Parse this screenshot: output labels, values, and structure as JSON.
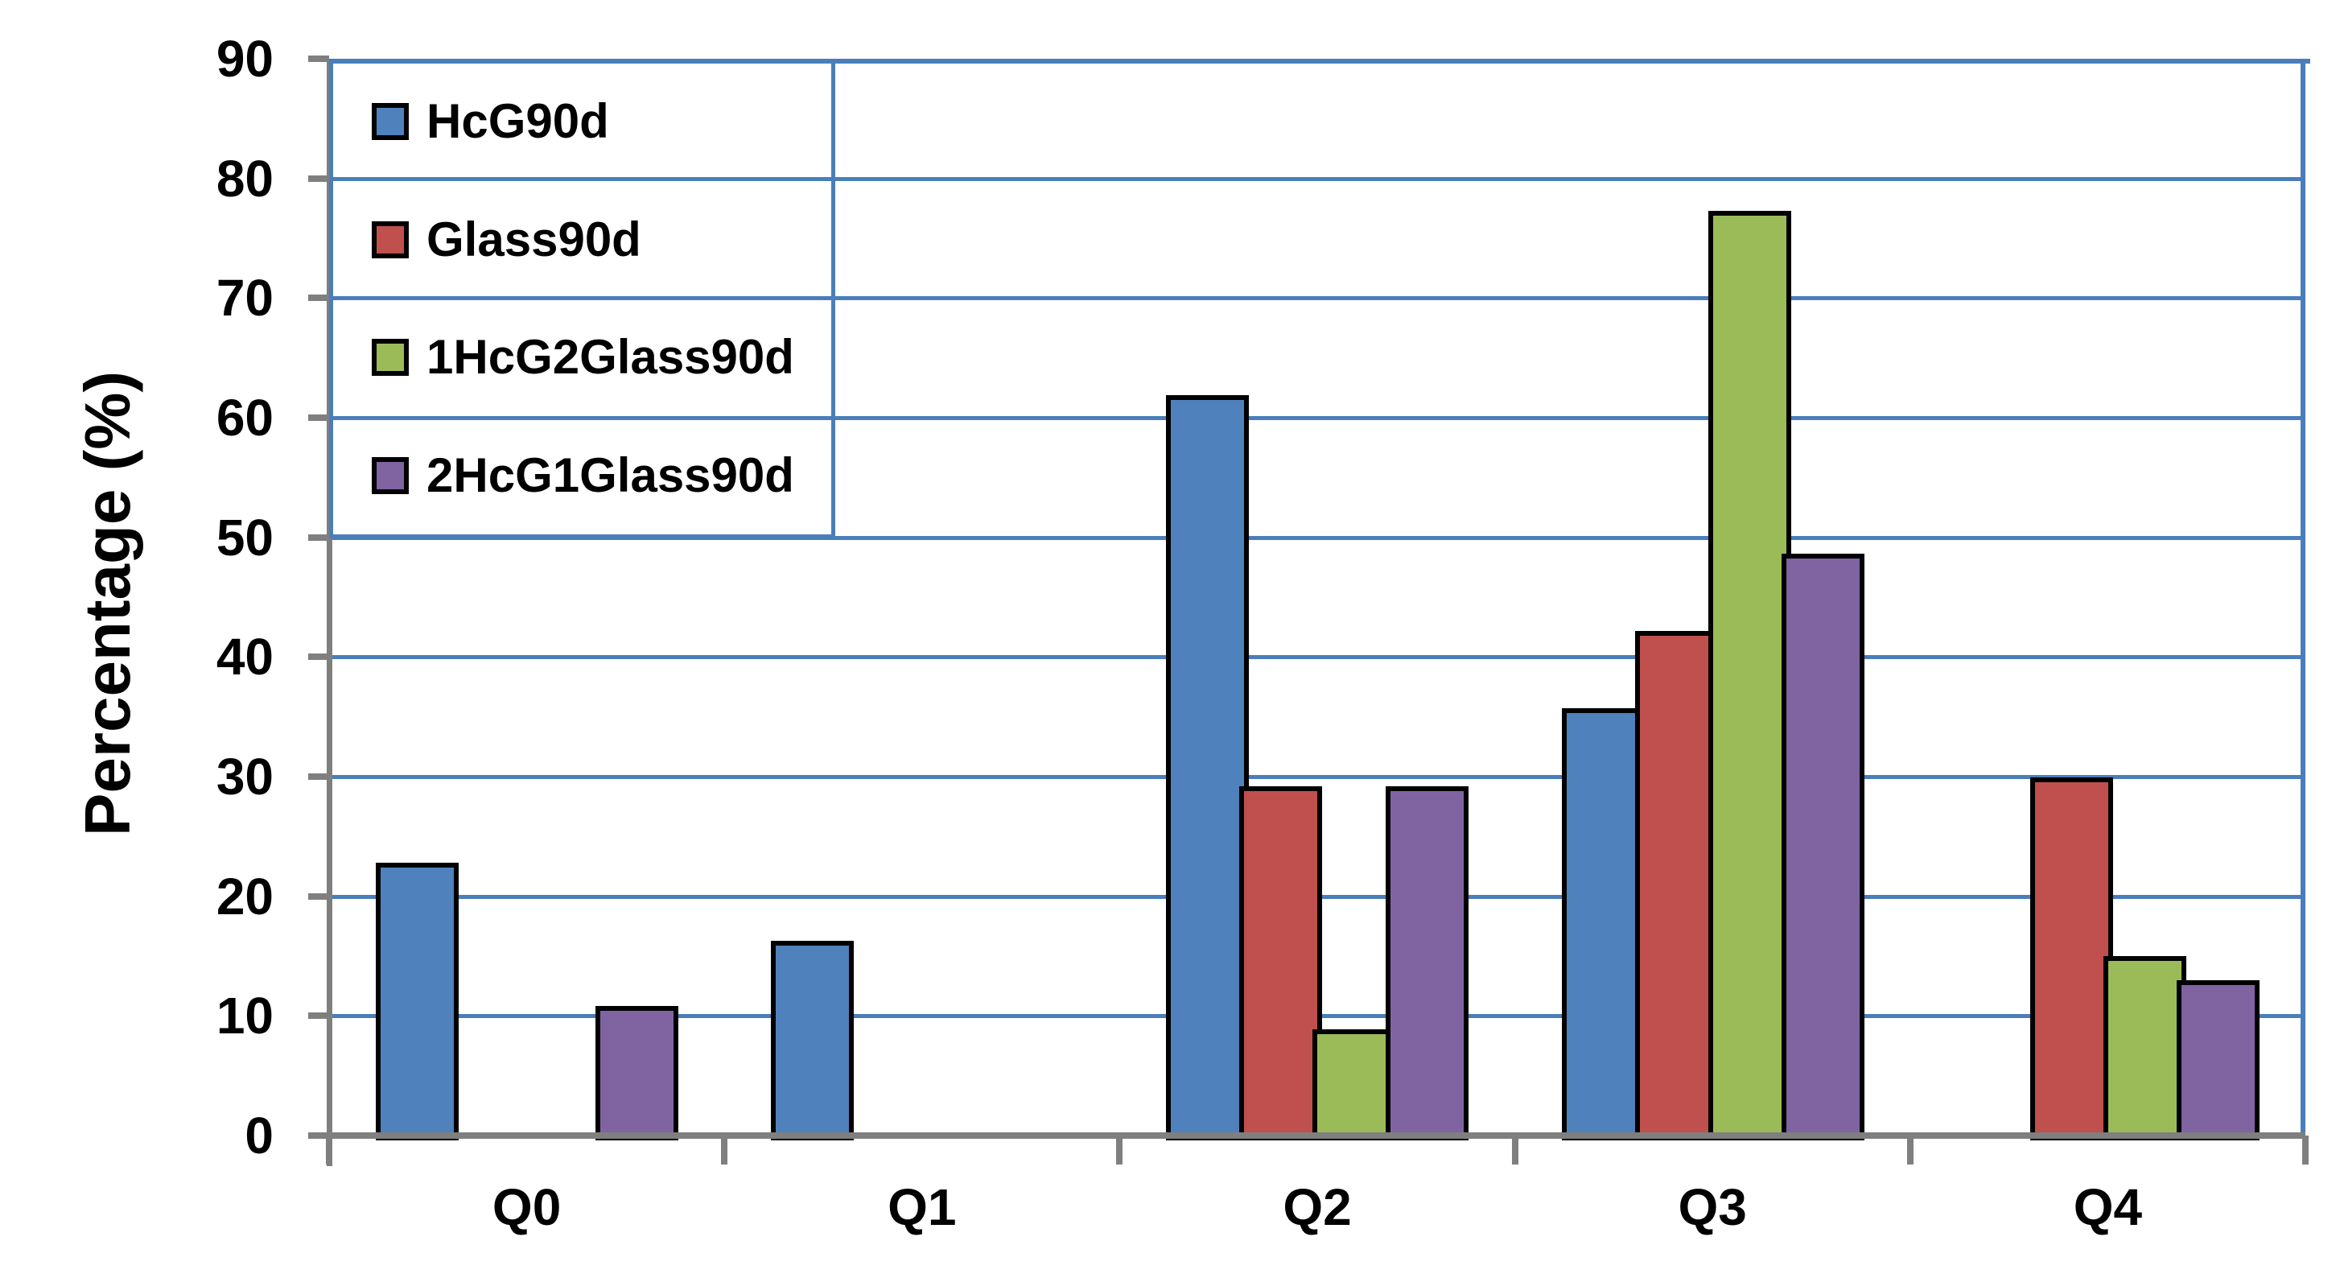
{
  "chart_data": {
    "type": "bar",
    "title": "",
    "ylabel": "Percentage (%)",
    "xlabel": "",
    "categories": [
      "Q0",
      "Q1",
      "Q2",
      "Q3",
      "Q4"
    ],
    "series": [
      {
        "name": "HcG90d",
        "color": "#4F81BD",
        "values": [
          22.4,
          15.9,
          61.5,
          35.3,
          0
        ]
      },
      {
        "name": "Glass90d",
        "color": "#C0504D",
        "values": [
          0,
          0,
          28.8,
          41.8,
          29.5
        ]
      },
      {
        "name": "1HcG2Glass90d",
        "color": "#9BBB59",
        "values": [
          0,
          0,
          8.5,
          76.9,
          14.6
        ]
      },
      {
        "name": "2HcG1Glass90d",
        "color": "#8064A2",
        "values": [
          10.4,
          0,
          28.8,
          48.2,
          12.6
        ]
      }
    ],
    "ylim": [
      0,
      90
    ],
    "ytick_step": 10,
    "grid": true,
    "legend_position": "top-left"
  },
  "y_axis": {
    "title": "Percentage (%)",
    "tick_labels": [
      "0",
      "10",
      "20",
      "30",
      "40",
      "50",
      "60",
      "70",
      "80",
      "90"
    ]
  },
  "x_axis": {
    "tick_labels": [
      "Q0",
      "Q1",
      "Q2",
      "Q3",
      "Q4"
    ]
  },
  "legend": {
    "items": [
      {
        "label": "HcG90d",
        "color": "#4F81BD"
      },
      {
        "label": "Glass90d",
        "color": "#C0504D"
      },
      {
        "label": "1HcG2Glass90d",
        "color": "#9BBB59"
      },
      {
        "label": "2HcG1Glass90d",
        "color": "#8064A2"
      }
    ]
  },
  "colors": {
    "gridline": "#4a7ebb",
    "chart_border": "#4a7ebb",
    "axis": "#7f7f7f",
    "text": "#000000"
  }
}
